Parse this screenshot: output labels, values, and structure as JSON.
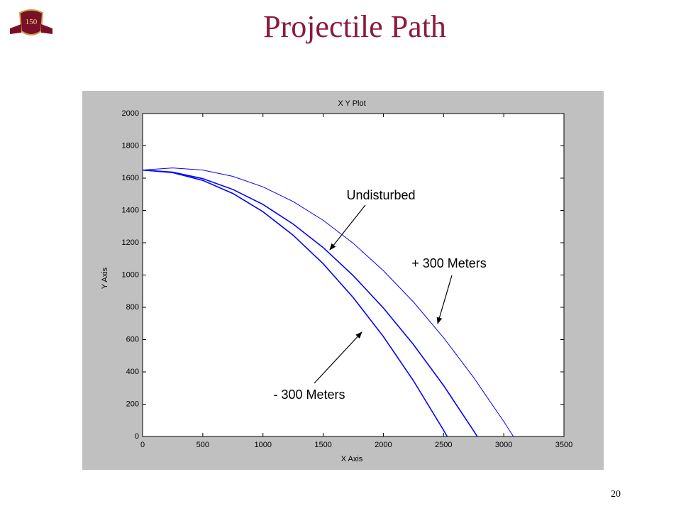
{
  "slide": {
    "title": "Projectile Path",
    "page_number": "20",
    "logo_text": "150"
  },
  "chart_data": {
    "type": "line",
    "title": "X Y Plot",
    "x_label": "X Axis",
    "y_label": "Y Axis",
    "xlim": [
      0,
      3500
    ],
    "ylim": [
      0,
      2000
    ],
    "xticks": [
      0,
      500,
      1000,
      1500,
      2000,
      2500,
      3000,
      3500
    ],
    "yticks": [
      0,
      200,
      400,
      600,
      800,
      1000,
      1200,
      1400,
      1600,
      1800,
      2000
    ],
    "grid": false,
    "series": [
      {
        "name": "Undisturbed",
        "color": "#0000ff",
        "x": [
          0,
          250,
          500,
          750,
          1000,
          1250,
          1500,
          1750,
          2000,
          2250,
          2500,
          2750,
          2780
        ],
        "values": [
          1650,
          1637,
          1597,
          1530,
          1437,
          1316,
          1170,
          996,
          796,
          569,
          316,
          35,
          0
        ]
      },
      {
        "name": "+ 300 Meters",
        "color": "#0000ff",
        "x": [
          0,
          250,
          500,
          750,
          1000,
          1250,
          1500,
          1750,
          2000,
          2250,
          2500,
          2750,
          3000,
          3080
        ],
        "values": [
          1650,
          1663,
          1650,
          1611,
          1546,
          1455,
          1339,
          1196,
          1027,
          833,
          612,
          365,
          93,
          0
        ]
      },
      {
        "name": "- 300 Meters",
        "color": "#0000ff",
        "x": [
          0,
          250,
          500,
          750,
          1000,
          1250,
          1500,
          1750,
          2000,
          2250,
          2500,
          2530
        ],
        "values": [
          1650,
          1634,
          1586,
          1505,
          1392,
          1247,
          1070,
          860,
          619,
          345,
          39,
          0
        ]
      }
    ]
  }
}
